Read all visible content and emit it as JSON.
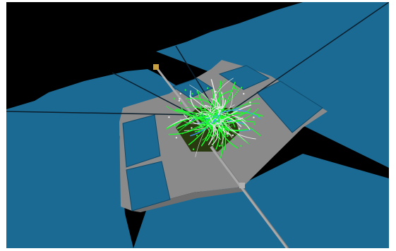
{
  "scene": {
    "type": "3d-event-display",
    "background_color": "#000000",
    "frame_color": "#ffffff",
    "colors": {
      "detector_panels": "#1a6a94",
      "detector_panel_edge": "#0f4a6a",
      "central_floor": "#8a8a8a",
      "floor_edge": "#6e6e6e",
      "beam_pipe": "#a8a8a8",
      "support_lines": "#0b1e2c",
      "tracks_primary": "#1aff2a",
      "tracks_secondary": "#e6e6e6",
      "tracks_tertiary": "#3aa0ff",
      "core_shadow": "#2a3a10"
    },
    "visible_text": []
  }
}
